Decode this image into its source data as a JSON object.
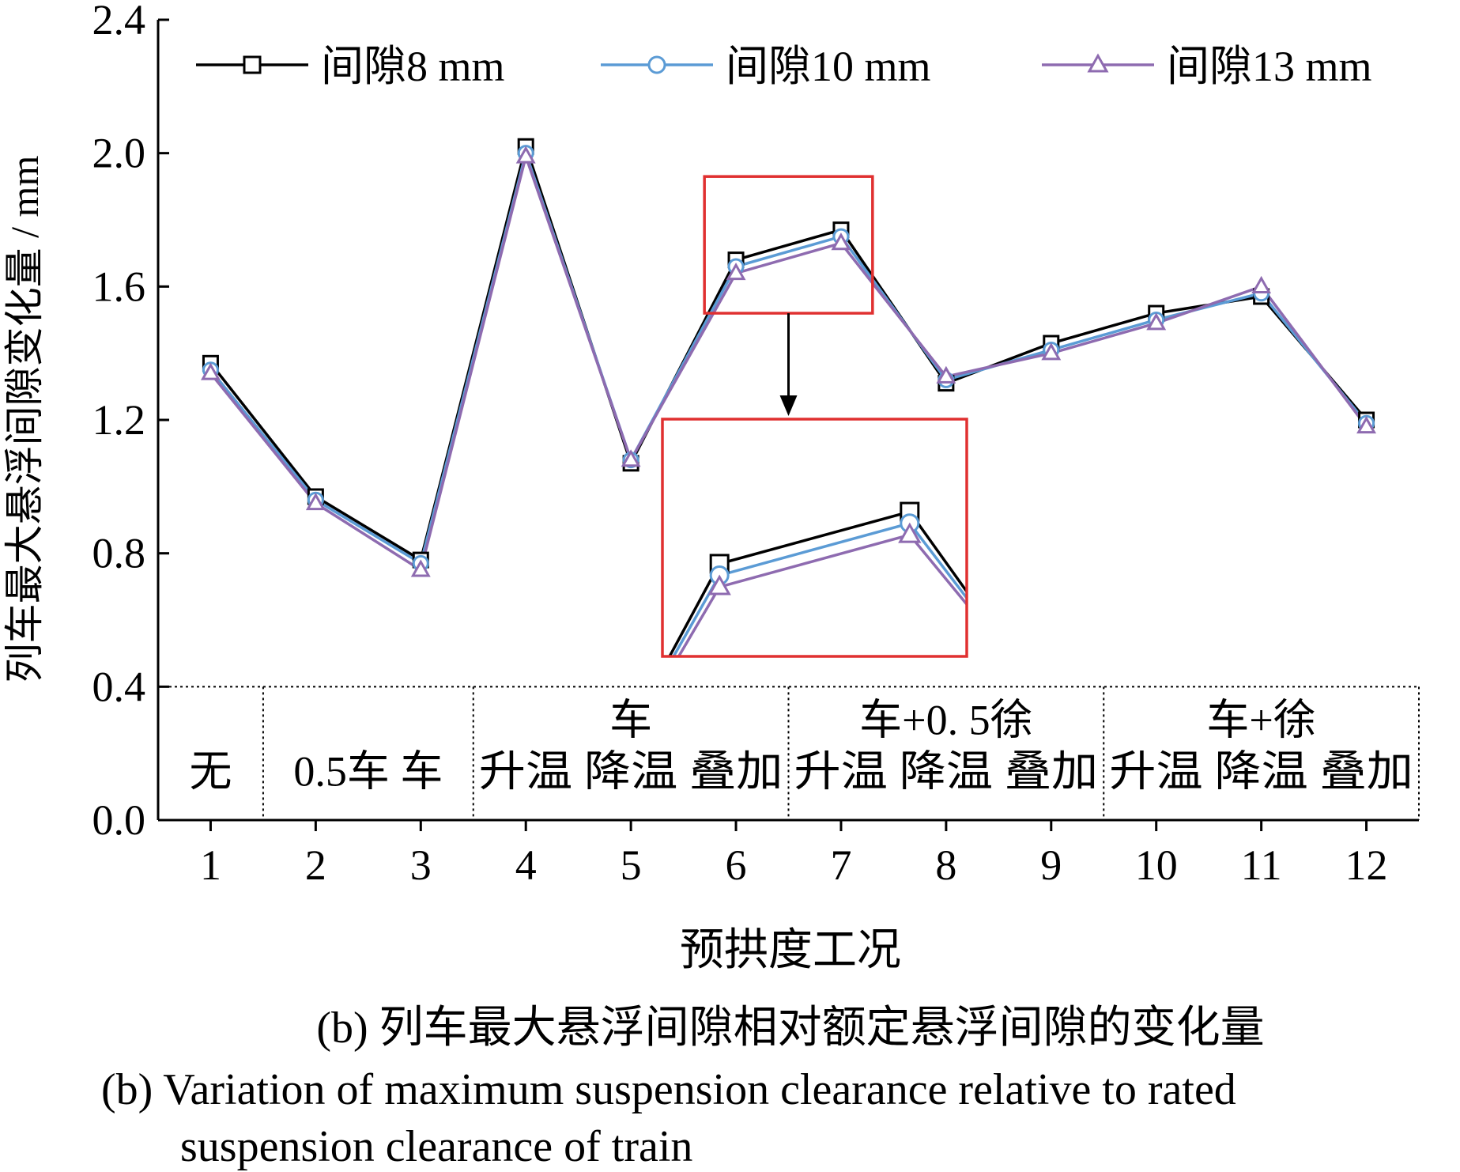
{
  "chart_data": {
    "type": "line",
    "xlabel": "预拱度工况",
    "ylabel": "列车最大悬浮间隙变化量 / mm",
    "x": [
      1,
      2,
      3,
      4,
      5,
      6,
      7,
      8,
      9,
      10,
      11,
      12
    ],
    "x_tick_labels": [
      "1",
      "2",
      "3",
      "4",
      "5",
      "6",
      "7",
      "8",
      "9",
      "10",
      "11",
      "12"
    ],
    "xlim": [
      0.5,
      12.5
    ],
    "ylim": [
      0,
      2.4
    ],
    "y_ticks": [
      0.0,
      0.4,
      0.8,
      1.2,
      1.6,
      2.0,
      2.4
    ],
    "y_tick_labels": [
      "0.0",
      "0.4",
      "0.8",
      "1.2",
      "1.6",
      "2.0",
      "2.4"
    ],
    "grid": false,
    "legend_position": "top",
    "series": [
      {
        "name": "间隙8 mm",
        "color": "#000000",
        "marker": "square",
        "values": [
          1.37,
          0.97,
          0.78,
          2.02,
          1.07,
          1.68,
          1.77,
          1.31,
          1.43,
          1.52,
          1.57,
          1.2
        ]
      },
      {
        "name": "间隙10 mm",
        "color": "#5b9bd5",
        "marker": "circle",
        "values": [
          1.35,
          0.96,
          0.77,
          2.0,
          1.08,
          1.66,
          1.75,
          1.32,
          1.41,
          1.5,
          1.58,
          1.19
        ]
      },
      {
        "name": "间隙13 mm",
        "color": "#8e6bb0",
        "marker": "triangle",
        "values": [
          1.34,
          0.95,
          0.75,
          1.99,
          1.08,
          1.64,
          1.73,
          1.33,
          1.4,
          1.49,
          1.6,
          1.18
        ]
      }
    ],
    "groups": [
      {
        "range": [
          0.5,
          1.5
        ],
        "lines": [
          "无"
        ]
      },
      {
        "range": [
          1.5,
          3.5
        ],
        "lines": [
          "0.5车  车"
        ]
      },
      {
        "range": [
          3.5,
          6.5
        ],
        "lines": [
          "车",
          "升温 降温 叠加"
        ]
      },
      {
        "range": [
          6.5,
          9.5
        ],
        "lines": [
          "车+0. 5徐",
          "升温 降温 叠加"
        ]
      },
      {
        "range": [
          9.5,
          12.5
        ],
        "lines": [
          "车+徐",
          "升温 降温 叠加"
        ]
      }
    ],
    "group_band_top": 0.4,
    "zoom": {
      "source_x": [
        5.7,
        7.3
      ],
      "source_y": [
        1.52,
        1.93
      ],
      "highlight_color": "#e03030"
    },
    "caption": [
      "(b) 列车最大悬浮间隙相对额定悬浮间隙的变化量",
      "(b) Variation of maximum suspension clearance relative  to rated",
      "suspension clearance of train"
    ]
  }
}
